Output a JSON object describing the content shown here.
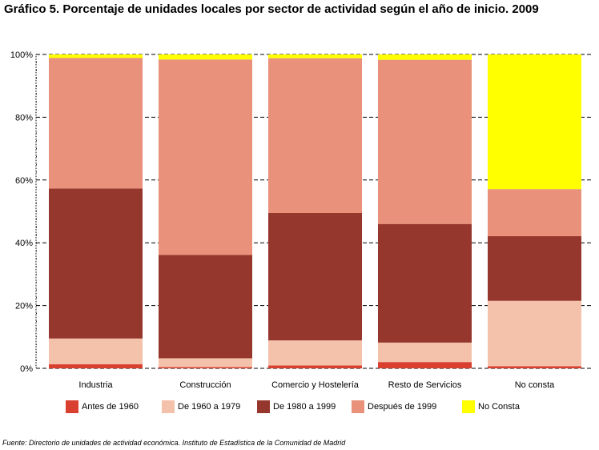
{
  "title": "Gráfico 5. Porcentaje de unidades locales por sector de actividad según el año de inicio. 2009",
  "source": "Fuente: Directorio de unidades de actividad económica. Instituto de Estadística de la Comunidad de Madrid",
  "colors": {
    "Antes de 1960": "#d9402f",
    "De 1960 a 1979": "#f4c1aa",
    "De 1980 a 1999": "#96372d",
    "Después de 1999": "#e9917a",
    "No Consta": "#ffff00"
  },
  "chart_data": {
    "type": "bar",
    "stacked": true,
    "title": "Gráfico 5. Porcentaje de unidades locales por sector de actividad según el año de inicio. 2009",
    "xlabel": "",
    "ylabel": "",
    "ylim": [
      0,
      100
    ],
    "yticks": [
      "0%",
      "20%",
      "40%",
      "60%",
      "80%",
      "100%"
    ],
    "grid": true,
    "legend": "bottom",
    "categories": [
      "Industria",
      "Construcción",
      "Comercio y Hostelería",
      "Resto de Servicios",
      "No consta"
    ],
    "series": [
      {
        "name": "Antes de 1960",
        "values": [
          1.3,
          0.4,
          0.9,
          2.0,
          0.7
        ]
      },
      {
        "name": "De 1960 a 1979",
        "values": [
          8.2,
          2.8,
          8.0,
          6.2,
          20.8
        ]
      },
      {
        "name": "De 1980 a 1999",
        "values": [
          47.8,
          32.9,
          40.6,
          37.8,
          20.6
        ]
      },
      {
        "name": "Después de 1999",
        "values": [
          41.6,
          62.3,
          49.3,
          52.3,
          15.0
        ]
      },
      {
        "name": "No Consta",
        "values": [
          1.1,
          1.6,
          1.2,
          1.7,
          42.9
        ]
      }
    ]
  }
}
